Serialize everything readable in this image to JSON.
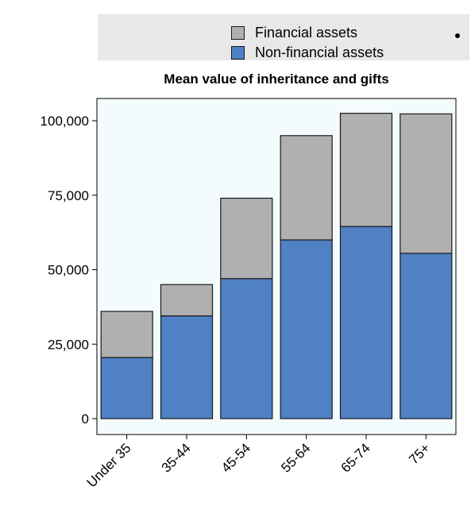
{
  "legend": {
    "items": [
      {
        "label": "Financial assets",
        "color": "#b0b0b0"
      },
      {
        "label": "Non-financial assets",
        "color": "#4f81c4"
      }
    ]
  },
  "chart_data": {
    "type": "bar",
    "stacked": true,
    "title": "Mean value of inheritance and gifts",
    "xlabel": "",
    "ylabel": "",
    "categories": [
      "Under 35",
      "35-44",
      "45-54",
      "55-64",
      "65-74",
      "75+"
    ],
    "series": [
      {
        "name": "Non-financial assets",
        "color": "#4f81c4",
        "values": [
          20500,
          34500,
          47000,
          60000,
          64500,
          55500
        ]
      },
      {
        "name": "Financial assets",
        "color": "#b0b0b0",
        "values": [
          15500,
          10500,
          27000,
          35000,
          38000,
          46800
        ]
      }
    ],
    "ylim": [
      0,
      100000
    ],
    "yticks": [
      0,
      25000,
      50000,
      75000,
      100000
    ],
    "ytick_labels": [
      "0",
      "25,000",
      "50,000",
      "75,000",
      "100,000"
    ],
    "plot_background": "#f4fbfd",
    "legend_position": "top"
  }
}
